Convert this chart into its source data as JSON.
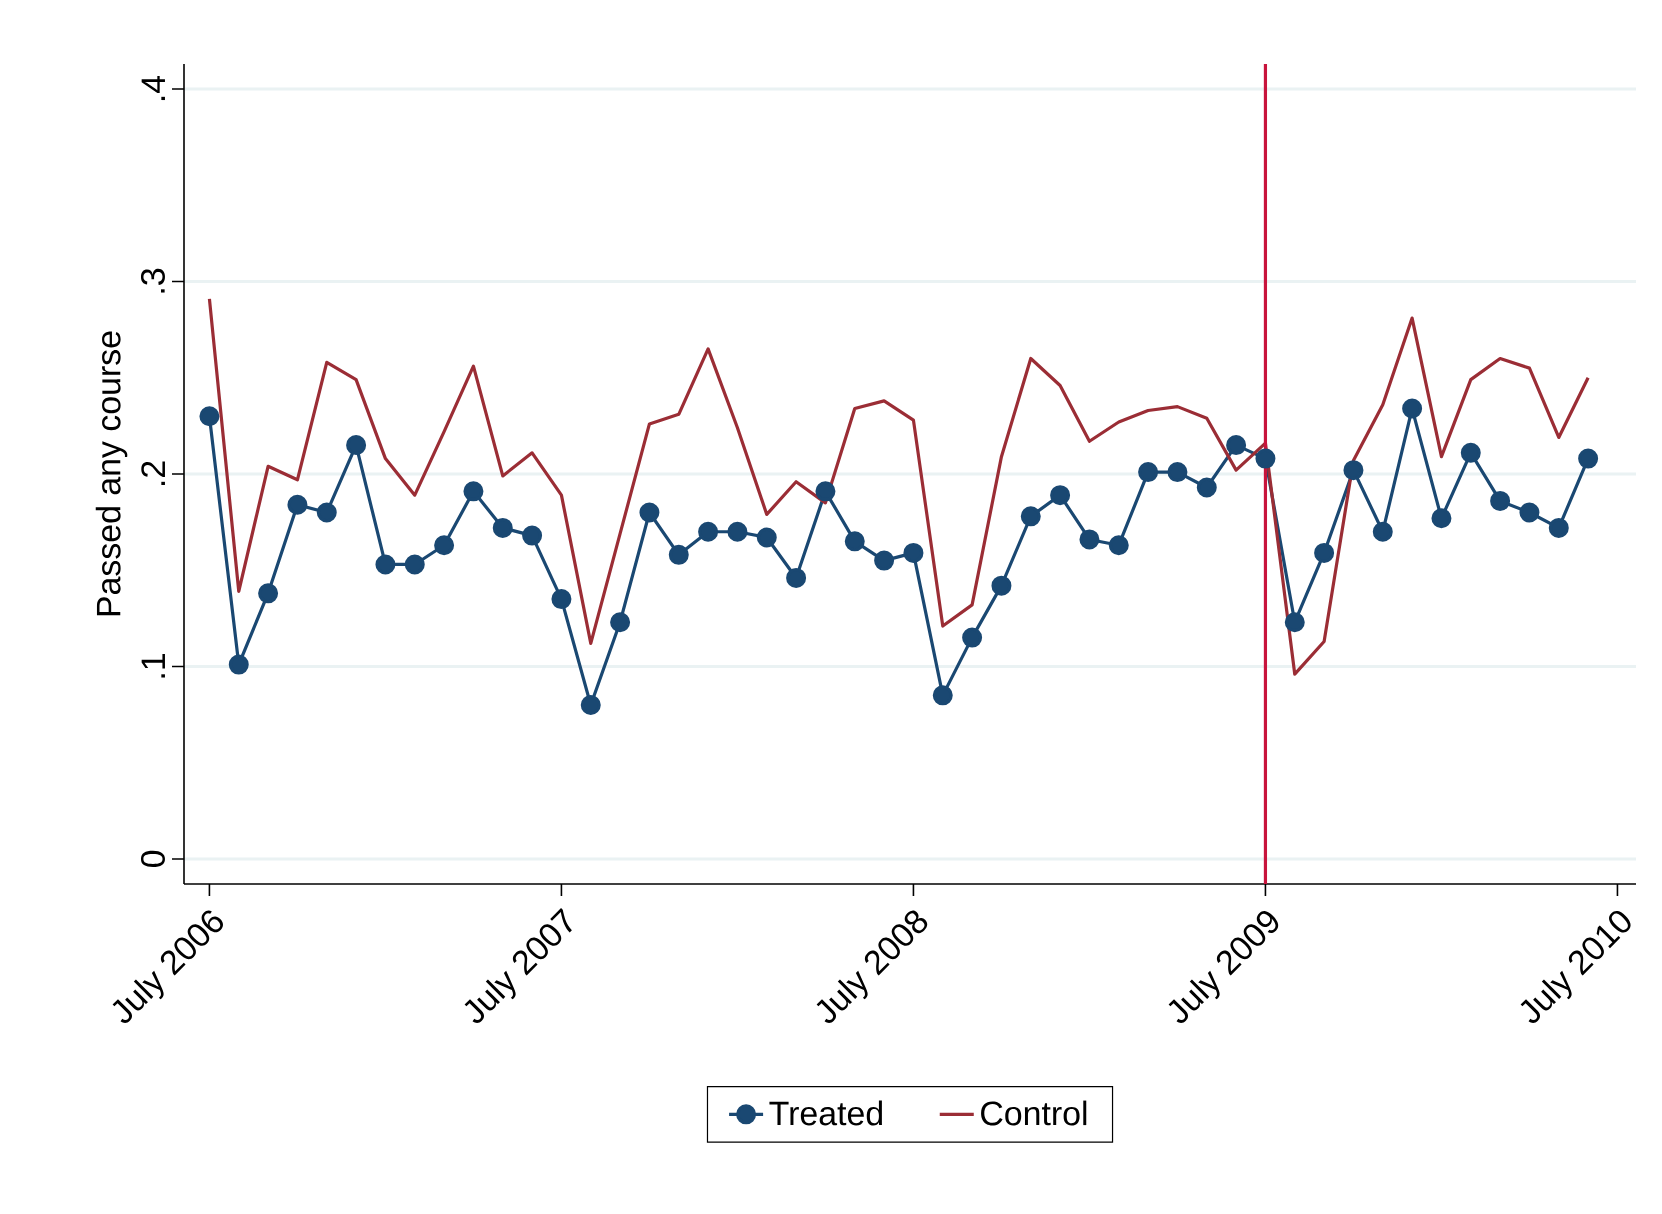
{
  "chart_data": {
    "type": "line",
    "ylabel": "Passed any course",
    "x": [
      "2006-07",
      "2006-08",
      "2006-09",
      "2006-10",
      "2006-11",
      "2006-12",
      "2007-01",
      "2007-02",
      "2007-03",
      "2007-04",
      "2007-05",
      "2007-06",
      "2007-07",
      "2007-08",
      "2007-09",
      "2007-10",
      "2007-11",
      "2007-12",
      "2008-01",
      "2008-02",
      "2008-03",
      "2008-04",
      "2008-05",
      "2008-06",
      "2008-07",
      "2008-08",
      "2008-09",
      "2008-10",
      "2008-11",
      "2008-12",
      "2009-01",
      "2009-02",
      "2009-03",
      "2009-04",
      "2009-05",
      "2009-06",
      "2009-07",
      "2009-08",
      "2009-09",
      "2009-10",
      "2009-11",
      "2009-12",
      "2010-01",
      "2010-02",
      "2010-03",
      "2010-04",
      "2010-05",
      "2010-06"
    ],
    "series": [
      {
        "name": "Treated",
        "color": "#1a4872",
        "marker": "circle",
        "line_style": "solid",
        "values": [
          0.23,
          0.101,
          0.138,
          0.184,
          0.18,
          0.215,
          0.153,
          0.153,
          0.163,
          0.191,
          0.172,
          0.168,
          0.135,
          0.08,
          0.123,
          0.18,
          0.158,
          0.17,
          0.17,
          0.167,
          0.146,
          0.191,
          0.165,
          0.155,
          0.159,
          0.085,
          0.115,
          0.142,
          0.178,
          0.189,
          0.166,
          0.163,
          0.201,
          0.201,
          0.193,
          0.215,
          0.208,
          0.123,
          0.159,
          0.202,
          0.17,
          0.234,
          0.177,
          0.211,
          0.186,
          0.18,
          0.172,
          0.208
        ]
      },
      {
        "name": "Control",
        "color": "#9b2d35",
        "marker": "none",
        "line_style": "solid",
        "values": [
          0.291,
          0.139,
          0.204,
          0.197,
          0.258,
          0.249,
          0.208,
          0.189,
          0.222,
          0.256,
          0.199,
          0.211,
          0.189,
          0.112,
          0.169,
          0.226,
          0.231,
          0.265,
          0.224,
          0.179,
          0.196,
          0.185,
          0.234,
          0.238,
          0.228,
          0.121,
          0.132,
          0.209,
          0.26,
          0.246,
          0.217,
          0.227,
          0.233,
          0.235,
          0.229,
          0.202,
          0.216,
          0.096,
          0.113,
          0.207,
          0.236,
          0.281,
          0.209,
          0.249,
          0.26,
          0.255,
          0.219,
          0.25
        ]
      }
    ],
    "xlim": [
      "2006-06-05",
      "2010-07-20"
    ],
    "xticks": [
      {
        "value": "2006-07",
        "label": "July 2006"
      },
      {
        "value": "2007-07",
        "label": "July 2007"
      },
      {
        "value": "2008-07",
        "label": "July 2008"
      },
      {
        "value": "2009-07",
        "label": "July 2009"
      },
      {
        "value": "2010-07",
        "label": "July 2010"
      }
    ],
    "ylim": [
      -0.013,
      0.413
    ],
    "yticks": [
      {
        "value": 0,
        "label": "0"
      },
      {
        "value": 0.1,
        "label": ".1"
      },
      {
        "value": 0.2,
        "label": ".2"
      },
      {
        "value": 0.3,
        "label": ".3"
      },
      {
        "value": 0.4,
        "label": ".4"
      }
    ],
    "ref_lines": [
      {
        "axis": "x",
        "value": "2009-07",
        "color": "#c8143c"
      }
    ],
    "grid": "y",
    "legend": "bottom"
  }
}
